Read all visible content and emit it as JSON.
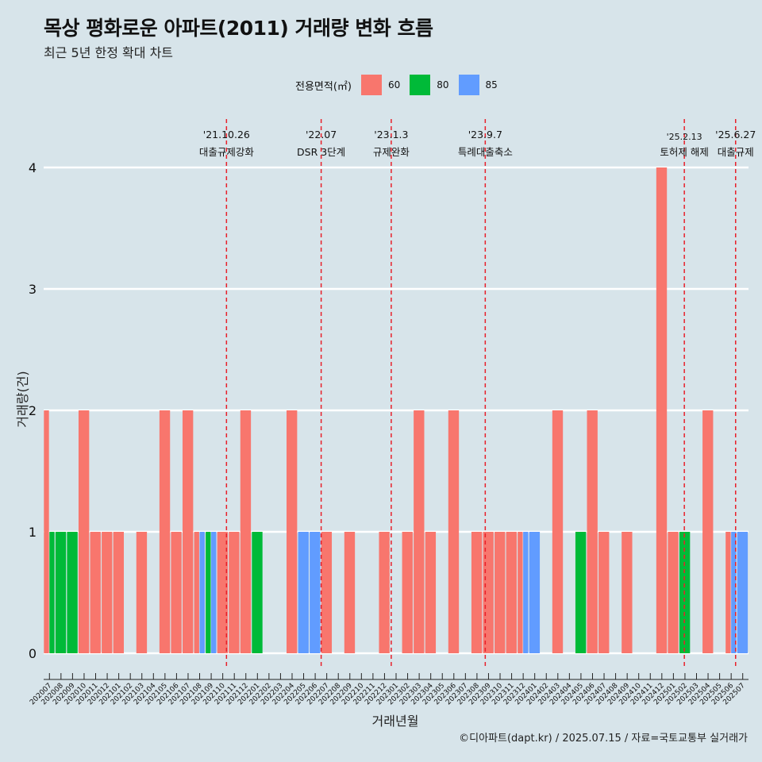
{
  "title": "목상 평화로운 아파트(2011) 거래량 변화 흐름",
  "subtitle": "최근 5년 한정 확대 차트",
  "footer": "©디아파트(dapt.kr) / 2025.07.15 / 자료=국토교통부 실거래가",
  "legend": {
    "title": "전용면적(㎡)",
    "items": [
      {
        "label": "60",
        "color": "#F8766D"
      },
      {
        "label": "80",
        "color": "#00BA38"
      },
      {
        "label": "85",
        "color": "#619CFF"
      }
    ]
  },
  "chart_data": {
    "type": "bar",
    "xlabel": "거래년월",
    "ylabel": "거래량(건)",
    "ylim": [
      0,
      4
    ],
    "yticks": [
      0,
      1,
      2,
      3,
      4
    ],
    "grid": true,
    "legend_position": "top",
    "categories": [
      "202007",
      "202008",
      "202009",
      "202010",
      "202011",
      "202012",
      "202101",
      "202102",
      "202103",
      "202104",
      "202105",
      "202106",
      "202107",
      "202108",
      "202109",
      "202110",
      "202111",
      "202112",
      "202201",
      "202202",
      "202203",
      "202204",
      "202205",
      "202206",
      "202207",
      "202208",
      "202209",
      "202210",
      "202211",
      "202212",
      "202301",
      "202302",
      "202303",
      "202304",
      "202305",
      "202306",
      "202307",
      "202308",
      "202309",
      "202310",
      "202311",
      "202312",
      "202401",
      "202402",
      "202403",
      "202404",
      "202405",
      "202406",
      "202407",
      "202408",
      "202409",
      "202410",
      "202411",
      "202412",
      "202501",
      "202502",
      "202503",
      "202504",
      "202505",
      "202506",
      "202507"
    ],
    "series": [
      {
        "name": "60",
        "color": "#F8766D",
        "values": [
          2,
          0,
          0,
          2,
          1,
          1,
          1,
          0,
          1,
          0,
          2,
          1,
          2,
          1,
          0,
          1,
          1,
          2,
          0,
          0,
          0,
          2,
          0,
          0,
          1,
          0,
          1,
          0,
          0,
          1,
          0,
          1,
          2,
          1,
          0,
          2,
          0,
          1,
          1,
          1,
          1,
          1,
          0,
          0,
          2,
          0,
          0,
          2,
          1,
          0,
          1,
          0,
          0,
          4,
          1,
          0,
          0,
          2,
          0,
          1,
          0
        ]
      },
      {
        "name": "80",
        "color": "#00BA38",
        "values": [
          1,
          1,
          1,
          0,
          0,
          0,
          0,
          0,
          0,
          0,
          0,
          0,
          0,
          0,
          1,
          0,
          0,
          0,
          1,
          0,
          0,
          0,
          0,
          0,
          0,
          0,
          0,
          0,
          0,
          0,
          0,
          0,
          0,
          0,
          0,
          0,
          0,
          0,
          0,
          0,
          0,
          0,
          0,
          0,
          0,
          0,
          1,
          0,
          0,
          0,
          0,
          0,
          0,
          0,
          0,
          1,
          0,
          0,
          0,
          0,
          0
        ]
      },
      {
        "name": "85",
        "color": "#619CFF",
        "values": [
          0,
          0,
          0,
          0,
          0,
          0,
          0,
          0,
          0,
          0,
          0,
          0,
          0,
          1,
          1,
          0,
          0,
          0,
          0,
          0,
          0,
          0,
          1,
          1,
          0,
          0,
          0,
          0,
          0,
          0,
          0,
          0,
          0,
          0,
          0,
          0,
          0,
          0,
          0,
          0,
          0,
          1,
          1,
          0,
          0,
          0,
          0,
          0,
          0,
          0,
          0,
          0,
          0,
          0,
          0,
          0,
          0,
          0,
          0,
          1,
          1
        ]
      }
    ],
    "events": [
      {
        "date": "'21.10.26",
        "label": "대출규제강화",
        "x": "2021-10-26"
      },
      {
        "date": "'22.07",
        "label": "DSR 3단계",
        "x": "2022-07-01"
      },
      {
        "date": "'23.1.3",
        "label": "규제완화",
        "x": "2023-01-03"
      },
      {
        "date": "'23.9.7",
        "label": "특례대출축소",
        "x": "2023-09-07"
      },
      {
        "date": "'25.2.13",
        "label": "토허제 해제",
        "x": "2025-02-13"
      },
      {
        "date": "'25.6.27",
        "label": "대출규제",
        "x": "2025-06-27"
      }
    ]
  }
}
